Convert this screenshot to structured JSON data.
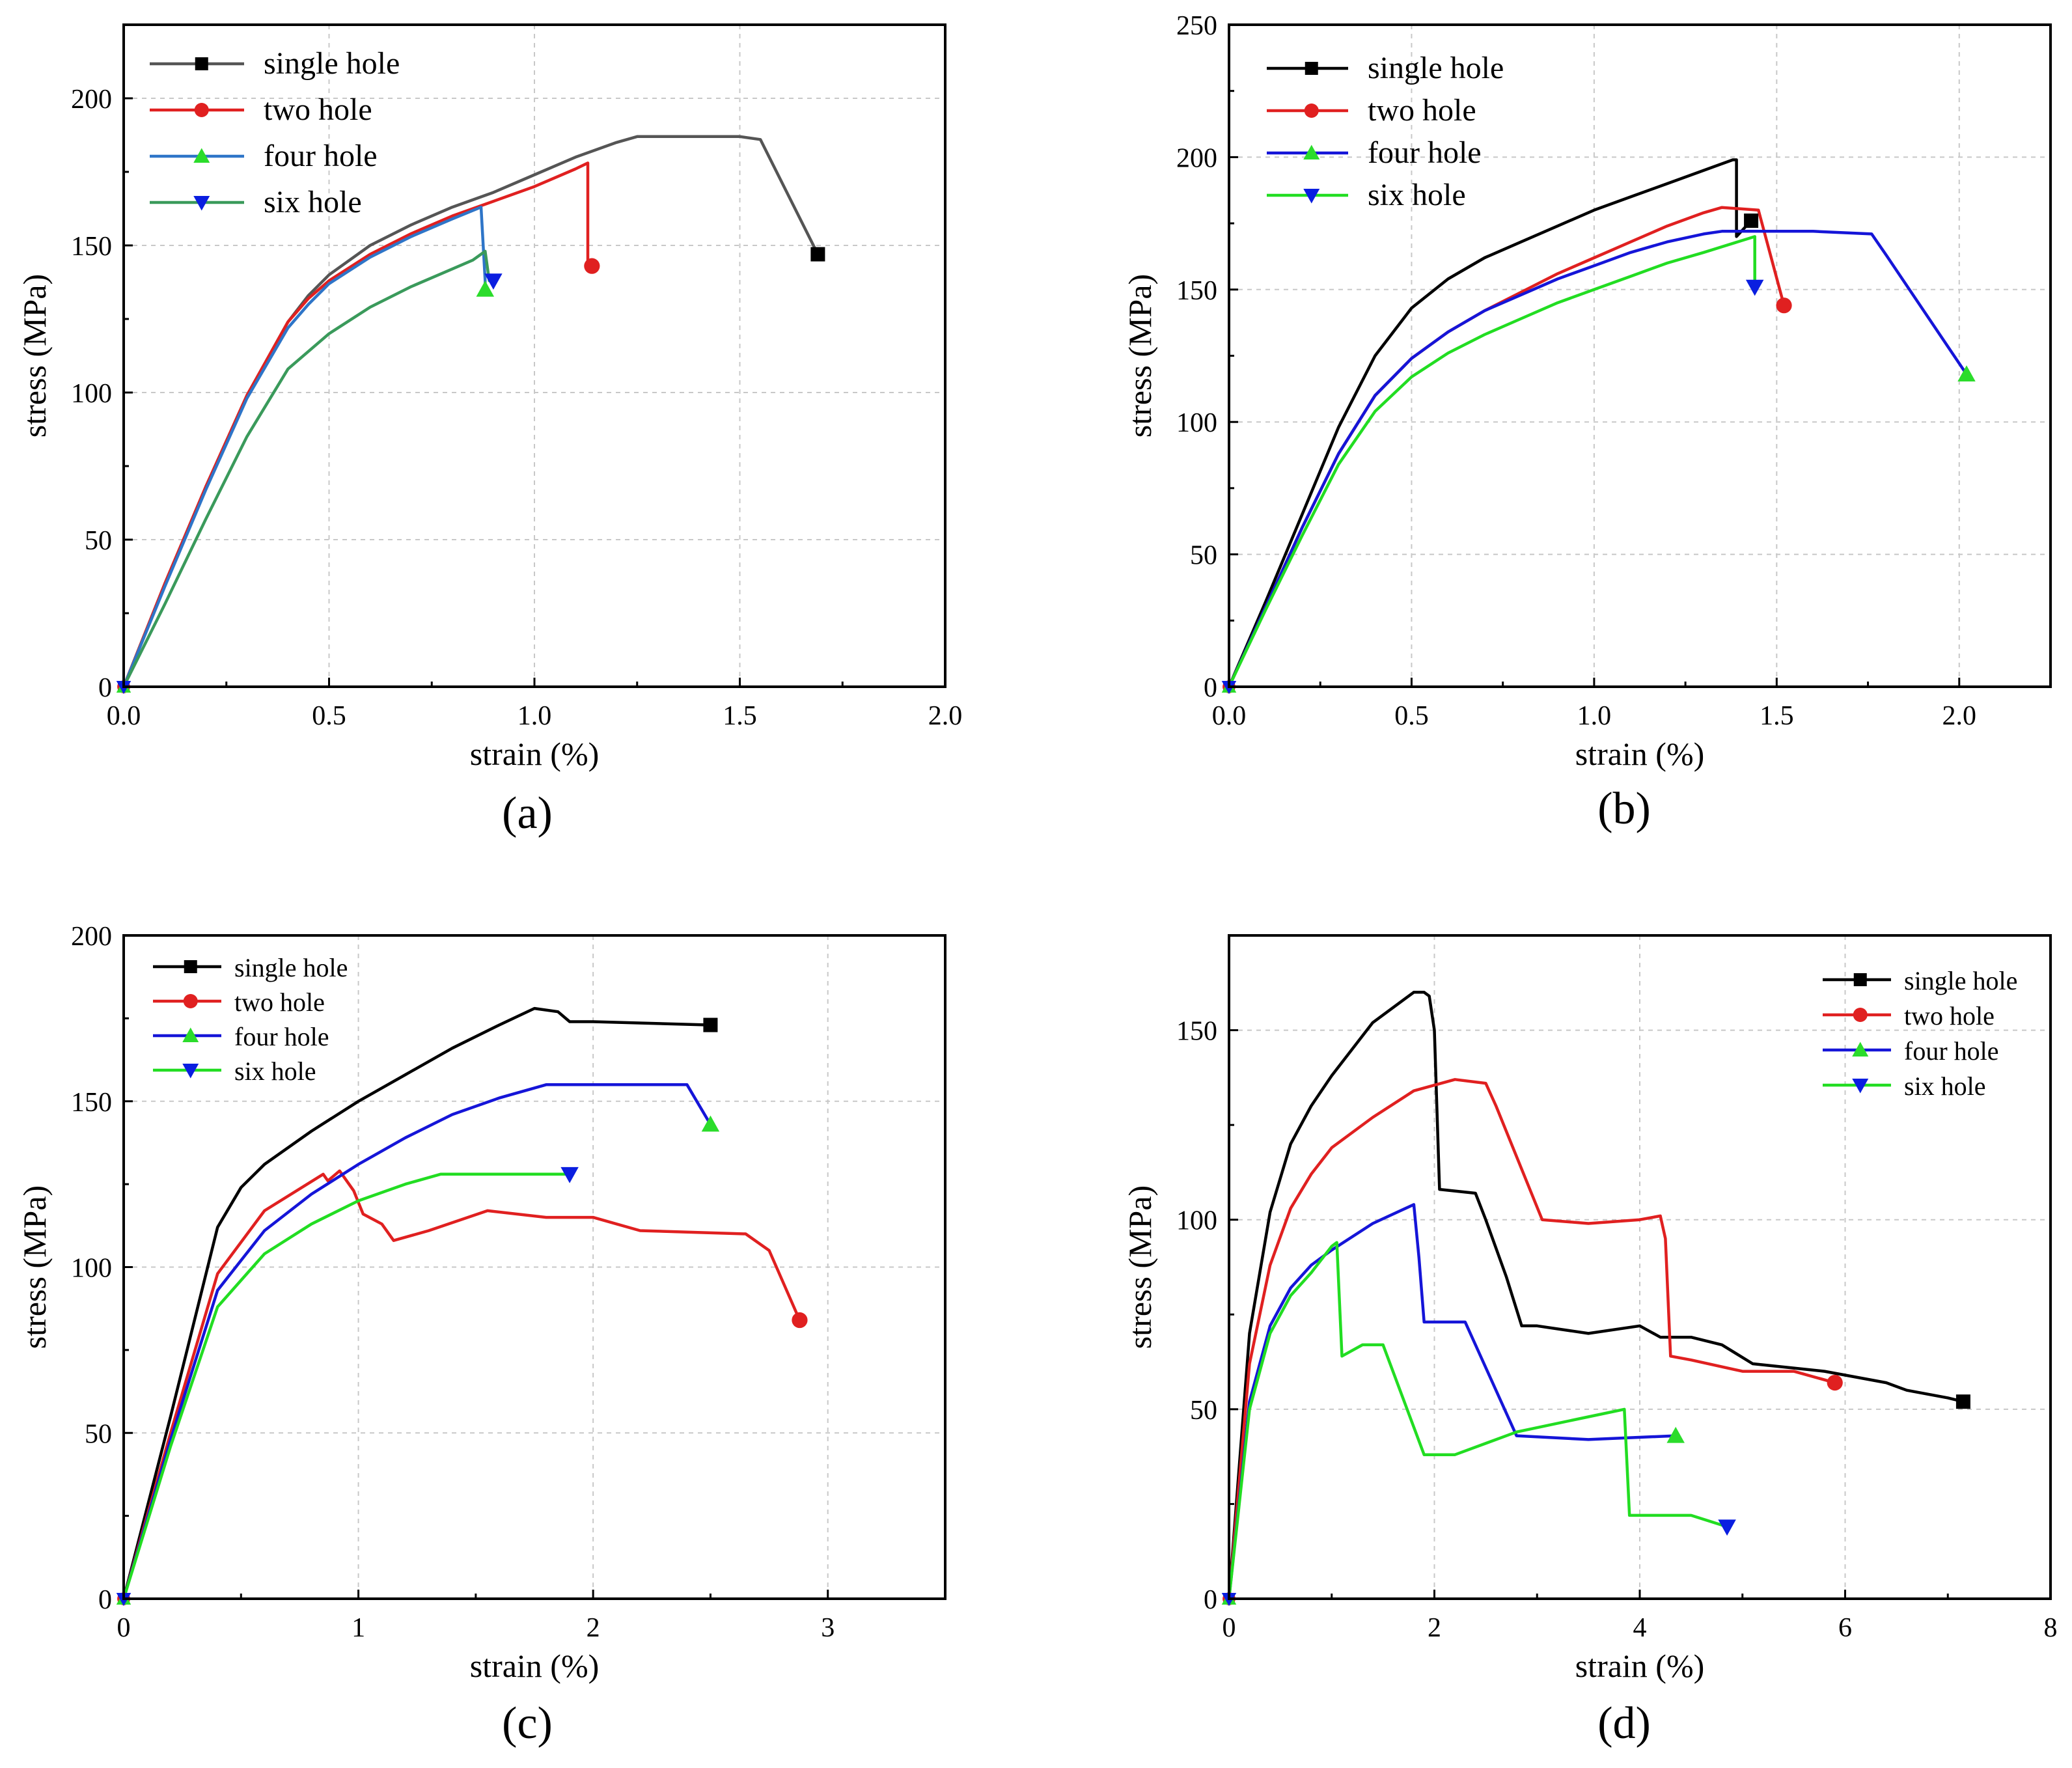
{
  "chart_data": [
    {
      "type": "line",
      "panel_label": "(a)",
      "xlabel": "strain (%)",
      "ylabel": "stress (MPa)",
      "xlim": [
        0,
        2.0
      ],
      "ylim": [
        0,
        225
      ],
      "xticks": [
        0.0,
        0.5,
        1.0,
        1.5,
        2.0
      ],
      "xtick_labels": [
        "0.0",
        "0.5",
        "1.0",
        "1.5",
        "2.0"
      ],
      "yticks": [
        0,
        50,
        100,
        150,
        200
      ],
      "ytick_labels": [
        "0",
        "50",
        "100",
        "150",
        "200"
      ],
      "grid": true,
      "legend_position": "top-left",
      "legend_size": "large",
      "series": [
        {
          "name": "single hole",
          "color": "#555555",
          "marker": "square",
          "marker_color": "#000000",
          "x": [
            0,
            0.1,
            0.2,
            0.3,
            0.4,
            0.45,
            0.5,
            0.6,
            0.7,
            0.8,
            0.9,
            1.0,
            1.1,
            1.2,
            1.25,
            1.4,
            1.5,
            1.55,
            1.69
          ],
          "y": [
            0,
            35,
            68,
            99,
            124,
            133,
            140,
            150,
            157,
            163,
            168,
            174,
            180,
            185,
            187,
            187,
            187,
            186,
            147
          ]
        },
        {
          "name": "two hole",
          "color": "#e02020",
          "marker": "circle",
          "marker_color": "#e02020",
          "x": [
            0,
            0.1,
            0.2,
            0.3,
            0.4,
            0.45,
            0.5,
            0.6,
            0.7,
            0.8,
            0.9,
            1.0,
            1.1,
            1.13,
            1.13,
            1.14
          ],
          "y": [
            0,
            35,
            68,
            99,
            124,
            132,
            138,
            147,
            154,
            160,
            165,
            170,
            176,
            178,
            143,
            143
          ]
        },
        {
          "name": "four hole",
          "color": "#2e75c8",
          "marker": "triangle-up",
          "marker_color": "#2bdc2b",
          "x": [
            0,
            0.1,
            0.2,
            0.3,
            0.4,
            0.45,
            0.5,
            0.6,
            0.7,
            0.8,
            0.87,
            0.88,
            0.88
          ],
          "y": [
            0,
            34,
            67,
            98,
            122,
            130,
            137,
            146,
            153,
            159,
            163,
            138,
            135
          ]
        },
        {
          "name": "six hole",
          "color": "#3a9a5b",
          "marker": "triangle-down",
          "marker_color": "#0a1ee0",
          "x": [
            0,
            0.1,
            0.2,
            0.3,
            0.4,
            0.5,
            0.6,
            0.7,
            0.8,
            0.85,
            0.88,
            0.89,
            0.9
          ],
          "y": [
            0,
            28,
            57,
            85,
            108,
            120,
            129,
            136,
            142,
            145,
            148,
            138,
            138
          ]
        }
      ]
    },
    {
      "type": "line",
      "panel_label": "(b)",
      "xlabel": "strain (%)",
      "ylabel": "stress (MPa)",
      "xlim": [
        0,
        2.25
      ],
      "ylim": [
        0,
        250
      ],
      "xticks": [
        0.0,
        0.5,
        1.0,
        1.5,
        2.0
      ],
      "xtick_labels": [
        "0.0",
        "0.5",
        "1.0",
        "1.5",
        "2.0"
      ],
      "yticks": [
        0,
        50,
        100,
        150,
        200,
        250
      ],
      "ytick_labels": [
        "0",
        "50",
        "100",
        "150",
        "200",
        "250"
      ],
      "grid": true,
      "legend_position": "top-left",
      "legend_size": "large",
      "series": [
        {
          "name": "single hole",
          "color": "#000000",
          "marker": "square",
          "marker_color": "#000000",
          "x": [
            0,
            0.1,
            0.2,
            0.3,
            0.4,
            0.5,
            0.6,
            0.7,
            0.8,
            0.9,
            1.0,
            1.1,
            1.2,
            1.3,
            1.38,
            1.39,
            1.39,
            1.43
          ],
          "y": [
            0,
            32,
            65,
            98,
            125,
            143,
            154,
            162,
            168,
            174,
            180,
            185,
            190,
            195,
            199,
            199,
            170,
            176
          ]
        },
        {
          "name": "two hole",
          "color": "#e02020",
          "marker": "circle",
          "marker_color": "#e02020",
          "x": [
            0,
            0.1,
            0.2,
            0.3,
            0.4,
            0.5,
            0.6,
            0.7,
            0.8,
            0.9,
            1.0,
            1.1,
            1.2,
            1.3,
            1.35,
            1.45,
            1.52
          ],
          "y": [
            0,
            30,
            60,
            88,
            110,
            124,
            134,
            142,
            149,
            156,
            162,
            168,
            174,
            179,
            181,
            180,
            144
          ]
        },
        {
          "name": "four hole",
          "color": "#1515d8",
          "marker": "triangle-up",
          "marker_color": "#2bdc2b",
          "x": [
            0,
            0.1,
            0.2,
            0.3,
            0.4,
            0.5,
            0.6,
            0.7,
            0.8,
            0.9,
            1.0,
            1.1,
            1.2,
            1.3,
            1.35,
            1.5,
            1.6,
            1.76,
            1.8,
            2.02
          ],
          "y": [
            0,
            30,
            60,
            88,
            110,
            124,
            134,
            142,
            148,
            154,
            159,
            164,
            168,
            171,
            172,
            172,
            172,
            171,
            163,
            118
          ]
        },
        {
          "name": "six hole",
          "color": "#22dd22",
          "marker": "triangle-down",
          "marker_color": "#0a1ee0",
          "x": [
            0,
            0.1,
            0.2,
            0.3,
            0.4,
            0.5,
            0.6,
            0.7,
            0.8,
            0.9,
            1.0,
            1.1,
            1.2,
            1.3,
            1.44,
            1.44
          ],
          "y": [
            0,
            29,
            57,
            84,
            104,
            117,
            126,
            133,
            139,
            145,
            150,
            155,
            160,
            164,
            170,
            151
          ]
        }
      ]
    },
    {
      "type": "line",
      "panel_label": "(c)",
      "xlabel": "strain (%)",
      "ylabel": "stress (MPa)",
      "xlim": [
        0,
        3.5
      ],
      "ylim": [
        0,
        200
      ],
      "xticks": [
        0,
        1,
        2,
        3
      ],
      "xtick_labels": [
        "0",
        "1",
        "2",
        "3"
      ],
      "yticks": [
        0,
        50,
        100,
        150,
        200
      ],
      "ytick_labels": [
        "0",
        "50",
        "100",
        "150",
        "200"
      ],
      "grid": true,
      "legend_position": "top-left",
      "legend_size": "small",
      "series": [
        {
          "name": "single hole",
          "color": "#000000",
          "marker": "square",
          "marker_color": "#000000",
          "x": [
            0,
            0.2,
            0.4,
            0.5,
            0.6,
            0.8,
            1.0,
            1.2,
            1.4,
            1.6,
            1.75,
            1.85,
            1.9,
            2.0,
            2.5
          ],
          "y": [
            0,
            55,
            112,
            124,
            131,
            141,
            150,
            158,
            166,
            173,
            178,
            177,
            174,
            174,
            173
          ]
        },
        {
          "name": "two hole",
          "color": "#e02020",
          "marker": "circle",
          "marker_color": "#e02020",
          "x": [
            0,
            0.2,
            0.4,
            0.6,
            0.85,
            0.87,
            0.92,
            0.98,
            1.02,
            1.1,
            1.15,
            1.3,
            1.55,
            1.8,
            2.0,
            2.2,
            2.65,
            2.75,
            2.88
          ],
          "y": [
            0,
            50,
            98,
            117,
            128,
            126,
            129,
            123,
            116,
            113,
            108,
            111,
            117,
            115,
            115,
            111,
            110,
            105,
            84
          ]
        },
        {
          "name": "four hole",
          "color": "#1515d8",
          "marker": "triangle-up",
          "marker_color": "#2bdc2b",
          "x": [
            0,
            0.2,
            0.4,
            0.6,
            0.8,
            1.0,
            1.2,
            1.4,
            1.6,
            1.8,
            2.0,
            2.2,
            2.4,
            2.5
          ],
          "y": [
            0,
            48,
            93,
            111,
            122,
            131,
            139,
            146,
            151,
            155,
            155,
            155,
            155,
            143
          ]
        },
        {
          "name": "six hole",
          "color": "#22dd22",
          "marker": "triangle-down",
          "marker_color": "#0a1ee0",
          "x": [
            0,
            0.2,
            0.4,
            0.6,
            0.8,
            1.0,
            1.2,
            1.3,
            1.35,
            1.6,
            1.9
          ],
          "y": [
            0,
            46,
            88,
            104,
            113,
            120,
            125,
            127,
            128,
            128,
            128
          ]
        }
      ]
    },
    {
      "type": "line",
      "panel_label": "(d)",
      "xlabel": "strain (%)",
      "ylabel": "stress (MPa)",
      "xlim": [
        0,
        8
      ],
      "ylim": [
        0,
        175
      ],
      "xticks": [
        0,
        2,
        4,
        6,
        8
      ],
      "xtick_labels": [
        "0",
        "2",
        "4",
        "6",
        "8"
      ],
      "yticks": [
        0,
        50,
        100,
        150
      ],
      "ytick_labels": [
        "0",
        "50",
        "100",
        "150"
      ],
      "grid": true,
      "legend_position": "top-right",
      "legend_size": "small",
      "series": [
        {
          "name": "single hole",
          "color": "#000000",
          "marker": "square",
          "marker_color": "#000000",
          "x": [
            0,
            0.2,
            0.4,
            0.6,
            0.8,
            1.0,
            1.4,
            1.8,
            1.9,
            1.95,
            2.0,
            2.05,
            2.4,
            2.5,
            2.7,
            2.85,
            3.0,
            3.5,
            4.0,
            4.2,
            4.5,
            4.8,
            5.1,
            5.8,
            6.4,
            6.6,
            7.0,
            7.15
          ],
          "y": [
            0,
            70,
            102,
            120,
            130,
            138,
            152,
            160,
            160,
            159,
            150,
            108,
            107,
            100,
            85,
            72,
            72,
            70,
            72,
            69,
            69,
            67,
            62,
            60,
            57,
            55,
            53,
            52
          ]
        },
        {
          "name": "two hole",
          "color": "#e02020",
          "marker": "circle",
          "marker_color": "#e02020",
          "x": [
            0,
            0.2,
            0.4,
            0.6,
            0.8,
            1.0,
            1.4,
            1.8,
            2.2,
            2.5,
            2.6,
            3.05,
            3.5,
            4.0,
            4.2,
            4.25,
            4.3,
            4.5,
            5.0,
            5.5,
            5.9
          ],
          "y": [
            0,
            62,
            88,
            103,
            112,
            119,
            127,
            134,
            137,
            136,
            130,
            100,
            99,
            100,
            101,
            95,
            64,
            63,
            60,
            60,
            57
          ]
        },
        {
          "name": "four hole",
          "color": "#1515d8",
          "marker": "triangle-up",
          "marker_color": "#2bdc2b",
          "x": [
            0,
            0.2,
            0.4,
            0.6,
            0.8,
            1.0,
            1.4,
            1.8,
            1.85,
            1.9,
            2.3,
            2.8,
            3.5,
            4.35
          ],
          "y": [
            0,
            52,
            72,
            82,
            88,
            92,
            99,
            104,
            90,
            73,
            73,
            43,
            42,
            43
          ]
        },
        {
          "name": "six hole",
          "color": "#22dd22",
          "marker": "triangle-down",
          "marker_color": "#0a1ee0",
          "x": [
            0,
            0.2,
            0.4,
            0.6,
            0.8,
            1.0,
            1.05,
            1.1,
            1.3,
            1.5,
            1.9,
            2.2,
            2.8,
            3.5,
            3.85,
            3.9,
            4.5,
            4.85
          ],
          "y": [
            0,
            50,
            70,
            80,
            86,
            93,
            94,
            64,
            67,
            67,
            38,
            38,
            44,
            48,
            50,
            22,
            22,
            19
          ]
        }
      ]
    }
  ]
}
